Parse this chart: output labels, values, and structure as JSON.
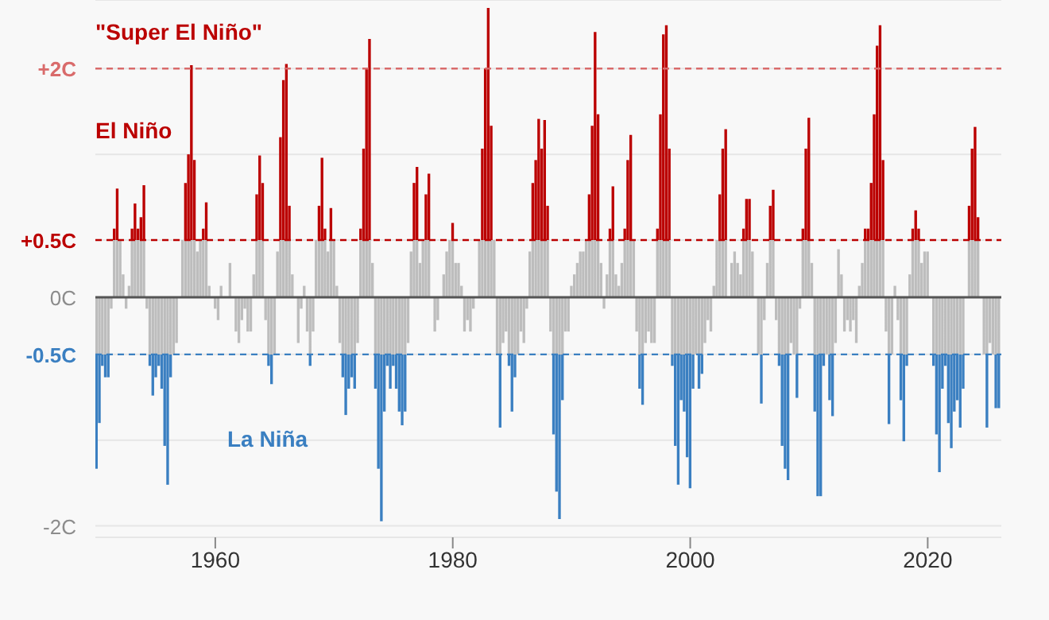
{
  "chart_data": {
    "type": "bar",
    "annotations": [
      "\"Super El Niño\"",
      "El Niño",
      "La Niña"
    ],
    "x": [
      1950,
      1950.25,
      1950.5,
      1950.75,
      1951,
      1951.25,
      1951.5,
      1951.75,
      1952,
      1952.25,
      1952.5,
      1952.75,
      1953,
      1953.25,
      1953.5,
      1953.75,
      1954,
      1954.25,
      1954.5,
      1954.75,
      1955,
      1955.25,
      1955.5,
      1955.75,
      1956,
      1956.25,
      1956.5,
      1956.75,
      1957,
      1957.25,
      1957.5,
      1957.75,
      1958,
      1958.25,
      1958.5,
      1958.75,
      1959,
      1959.25,
      1959.5,
      1959.75,
      1960,
      1960.25,
      1960.5,
      1960.75,
      1961,
      1961.25,
      1961.5,
      1961.75,
      1962,
      1962.25,
      1962.5,
      1962.75,
      1963,
      1963.25,
      1963.5,
      1963.75,
      1964,
      1964.25,
      1964.5,
      1964.75,
      1965,
      1965.25,
      1965.5,
      1965.75,
      1966,
      1966.25,
      1966.5,
      1966.75,
      1967,
      1967.25,
      1967.5,
      1967.75,
      1968,
      1968.25,
      1968.5,
      1968.75,
      1969,
      1969.25,
      1969.5,
      1969.75,
      1970,
      1970.25,
      1970.5,
      1970.75,
      1971,
      1971.25,
      1971.5,
      1971.75,
      1972,
      1972.25,
      1972.5,
      1972.75,
      1973,
      1973.25,
      1973.5,
      1973.75,
      1974,
      1974.25,
      1974.5,
      1974.75,
      1975,
      1975.25,
      1975.5,
      1975.75,
      1976,
      1976.25,
      1976.5,
      1976.75,
      1977,
      1977.25,
      1977.5,
      1977.75,
      1978,
      1978.25,
      1978.5,
      1978.75,
      1979,
      1979.25,
      1979.5,
      1979.75,
      1980,
      1980.25,
      1980.5,
      1980.75,
      1981,
      1981.25,
      1981.5,
      1981.75,
      1982,
      1982.25,
      1982.5,
      1982.75,
      1983,
      1983.25,
      1983.5,
      1983.75,
      1984,
      1984.25,
      1984.5,
      1984.75,
      1985,
      1985.25,
      1985.5,
      1985.75,
      1986,
      1986.25,
      1986.5,
      1986.75,
      1987,
      1987.25,
      1987.5,
      1987.75,
      1988,
      1988.25,
      1988.5,
      1988.75,
      1989,
      1989.25,
      1989.5,
      1989.75,
      1990,
      1990.25,
      1990.5,
      1990.75,
      1991,
      1991.25,
      1991.5,
      1991.75,
      1992,
      1992.25,
      1992.5,
      1992.75,
      1993,
      1993.25,
      1993.5,
      1993.75,
      1994,
      1994.25,
      1994.5,
      1994.75,
      1995,
      1995.25,
      1995.5,
      1995.75,
      1996,
      1996.25,
      1996.5,
      1996.75,
      1997,
      1997.25,
      1997.5,
      1997.75,
      1998,
      1998.25,
      1998.5,
      1998.75,
      1999,
      1999.25,
      1999.5,
      1999.75,
      2000,
      2000.25,
      2000.5,
      2000.75,
      2001,
      2001.25,
      2001.5,
      2001.75,
      2002,
      2002.25,
      2002.5,
      2002.75,
      2003,
      2003.25,
      2003.5,
      2003.75,
      2004,
      2004.25,
      2004.5,
      2004.75,
      2005,
      2005.25,
      2005.5,
      2005.75,
      2006,
      2006.25,
      2006.5,
      2006.75,
      2007,
      2007.25,
      2007.5,
      2007.75,
      2008,
      2008.25,
      2008.5,
      2008.75,
      2009,
      2009.25,
      2009.5,
      2009.75,
      2010,
      2010.25,
      2010.5,
      2010.75,
      2011,
      2011.25,
      2011.5,
      2011.75,
      2012,
      2012.25,
      2012.5,
      2012.75,
      2013,
      2013.25,
      2013.5,
      2013.75,
      2014,
      2014.25,
      2014.5,
      2014.75,
      2015,
      2015.25,
      2015.5,
      2015.75,
      2016,
      2016.25,
      2016.5,
      2016.75,
      2017,
      2017.25,
      2017.5,
      2017.75,
      2018,
      2018.25,
      2018.5,
      2018.75,
      2019,
      2019.25,
      2019.5,
      2019.75,
      2020,
      2020.25,
      2020.5,
      2020.75,
      2021,
      2021.25,
      2021.5,
      2021.75,
      2022,
      2022.25,
      2022.5,
      2022.75,
      2023,
      2023.25,
      2023.5,
      2023.75,
      2024,
      2024.25,
      2024.5,
      2024.75,
      2025,
      2025.25,
      2025.5,
      2025.75,
      2026
    ],
    "series": [
      {
        "color": "#bdbdbd",
        "values": [
          -1.5,
          -1.1,
          -0.6,
          -0.7,
          -0.7,
          -0.1,
          0.6,
          0.95,
          0.5,
          0.2,
          -0.1,
          0.1,
          0.6,
          0.82,
          0.6,
          0.7,
          0.98,
          -0.1,
          -0.6,
          -0.86,
          -0.7,
          -0.6,
          -0.8,
          -1.3,
          -1.64,
          -0.7,
          -0.5,
          -0.4,
          0.0,
          0.5,
          1.0,
          1.25,
          2.03,
          1.2,
          0.4,
          0.5,
          0.6,
          0.83,
          0.1,
          0.0,
          -0.1,
          -0.2,
          0.1,
          0.0,
          0.0,
          0.3,
          0.0,
          -0.3,
          -0.4,
          -0.2,
          -0.1,
          -0.3,
          -0.3,
          0.2,
          0.9,
          1.24,
          1.0,
          -0.2,
          -0.6,
          -0.76,
          -0.5,
          0.4,
          1.4,
          1.9,
          2.04,
          0.8,
          0.2,
          0.0,
          -0.4,
          -0.1,
          0.1,
          -0.3,
          -0.6,
          -0.3,
          0.5,
          0.8,
          1.22,
          0.6,
          0.4,
          0.78,
          0.5,
          0.1,
          -0.4,
          -0.7,
          -1.03,
          -0.8,
          -0.7,
          -0.8,
          -0.4,
          0.6,
          1.3,
          2.0,
          2.26,
          0.3,
          -0.8,
          -1.5,
          -1.96,
          -1.0,
          -0.6,
          -0.8,
          -0.6,
          -0.8,
          -1.0,
          -1.12,
          -1.0,
          -0.4,
          0.4,
          1.0,
          1.14,
          0.3,
          0.5,
          0.9,
          1.08,
          0.0,
          -0.3,
          -0.2,
          0.0,
          0.2,
          0.4,
          0.5,
          0.65,
          0.3,
          0.3,
          0.1,
          -0.3,
          -0.2,
          -0.3,
          -0.1,
          0.0,
          0.5,
          1.3,
          2.0,
          2.53,
          1.5,
          0.5,
          -0.5,
          -1.14,
          -0.4,
          -0.3,
          -0.6,
          -1.0,
          -0.7,
          -0.5,
          -0.3,
          -0.4,
          -0.1,
          0.4,
          1.0,
          1.2,
          1.56,
          1.3,
          1.55,
          0.8,
          -0.3,
          -1.2,
          -1.7,
          -1.94,
          -0.9,
          -0.3,
          -0.3,
          0.1,
          0.2,
          0.3,
          0.4,
          0.4,
          0.5,
          0.9,
          1.5,
          2.32,
          1.6,
          0.3,
          -0.1,
          0.2,
          0.6,
          0.97,
          0.2,
          0.1,
          0.3,
          0.6,
          1.2,
          1.42,
          0.5,
          -0.3,
          -0.8,
          -0.94,
          -0.4,
          -0.3,
          -0.4,
          -0.4,
          0.6,
          1.6,
          2.3,
          2.38,
          1.3,
          -0.6,
          -1.3,
          -1.64,
          -0.9,
          -1.0,
          -1.4,
          -1.67,
          -0.8,
          -0.5,
          -0.8,
          -0.67,
          -0.4,
          -0.2,
          -0.3,
          0.1,
          0.5,
          0.9,
          1.3,
          1.47,
          0.0,
          0.3,
          0.4,
          0.3,
          0.2,
          0.6,
          0.86,
          0.86,
          0.4,
          0.0,
          -0.5,
          -0.93,
          -0.2,
          0.3,
          0.8,
          0.94,
          -0.2,
          -0.6,
          -1.3,
          -1.5,
          -1.6,
          -0.4,
          -0.5,
          -0.88,
          -0.1,
          0.6,
          1.3,
          1.57,
          0.3,
          -1.0,
          -1.74,
          -1.74,
          -0.6,
          -0.5,
          -0.9,
          -1.04,
          -0.4,
          0.42,
          0.2,
          -0.3,
          -0.2,
          -0.3,
          -0.2,
          -0.4,
          0.1,
          0.3,
          0.6,
          0.6,
          1.0,
          1.6,
          2.2,
          2.38,
          1.2,
          -0.3,
          -1.11,
          -0.5,
          0.1,
          -0.2,
          -0.9,
          -1.26,
          -0.6,
          0.2,
          0.6,
          0.76,
          0.6,
          0.3,
          0.4,
          0.4,
          0.0,
          -0.6,
          -1.2,
          -1.53,
          -0.8,
          -0.6,
          -1.1,
          -1.32,
          -1.0,
          -0.9,
          -1.14,
          -0.8,
          0.0,
          0.8,
          1.3,
          1.49,
          0.7,
          0.0,
          -0.5,
          -1.14,
          -0.4,
          -0.5,
          -0.97,
          -0.97
        ]
      }
    ],
    "xlim": [
      1949.9,
      2026.2
    ],
    "xticks": [
      1960,
      1980,
      2000,
      2020
    ],
    "ylim": [
      -2.1,
      2.6
    ],
    "yticks": [
      {
        "value": -2,
        "label": "-2C"
      },
      {
        "value": -1.25,
        "label": null
      },
      {
        "value": -0.5,
        "label": "-0.5C"
      },
      {
        "value": 0,
        "label": "0C"
      },
      {
        "value": 0.5,
        "label": "+0.5C"
      },
      {
        "value": 1.25,
        "label": null
      },
      {
        "value": 2,
        "label": "+2C"
      }
    ],
    "ref_lines": [
      {
        "axis": "y",
        "value": 2,
        "color": "#d96b6b",
        "line_style": "dashed"
      },
      {
        "axis": "y",
        "value": 0.5,
        "color": "#bb0000",
        "line_style": "dashed"
      },
      {
        "axis": "y",
        "value": -0.5,
        "color": "#3a7fc1",
        "line_style": "dashed"
      },
      {
        "axis": "y",
        "value": 0,
        "color": "#555555",
        "line_style": "solid"
      }
    ],
    "grid": "y"
  }
}
